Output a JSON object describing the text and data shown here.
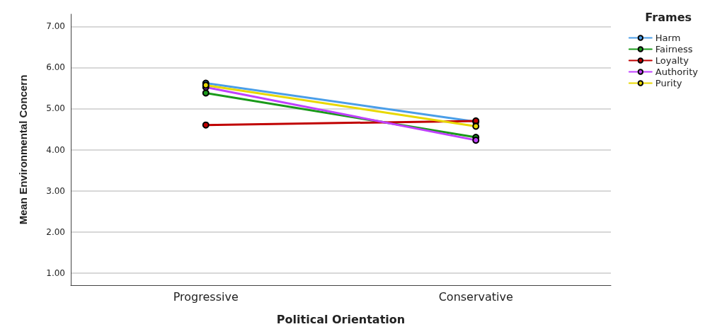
{
  "chart_data": {
    "type": "line",
    "xlabel": "Political Orientation",
    "ylabel": "Mean Environmental Concern",
    "legend_title": "Frames",
    "categories": [
      "Progressive",
      "Conservative"
    ],
    "series": [
      {
        "name": "Harm",
        "color": "#4a9ee8",
        "values": [
          5.62,
          4.68
        ]
      },
      {
        "name": "Fairness",
        "color": "#1a9a1a",
        "values": [
          5.38,
          4.3
        ]
      },
      {
        "name": "Loyalty",
        "color": "#c00000",
        "values": [
          4.6,
          4.7
        ]
      },
      {
        "name": "Authority",
        "color": "#c040ff",
        "values": [
          5.52,
          4.23
        ]
      },
      {
        "name": "Purity",
        "color": "#e8d800",
        "values": [
          5.57,
          4.57
        ]
      }
    ],
    "ylim": [
      0.7,
      7.3
    ],
    "yticks": [
      {
        "value": 1,
        "label": "1.00"
      },
      {
        "value": 2,
        "label": "2.00"
      },
      {
        "value": 3,
        "label": "3.00"
      },
      {
        "value": 4,
        "label": "4.00"
      },
      {
        "value": 5,
        "label": "5.00"
      },
      {
        "value": 6,
        "label": "6.00"
      },
      {
        "value": 7,
        "label": "7.00"
      }
    ],
    "grid": "y",
    "legend": "top right",
    "marker": "circle"
  }
}
